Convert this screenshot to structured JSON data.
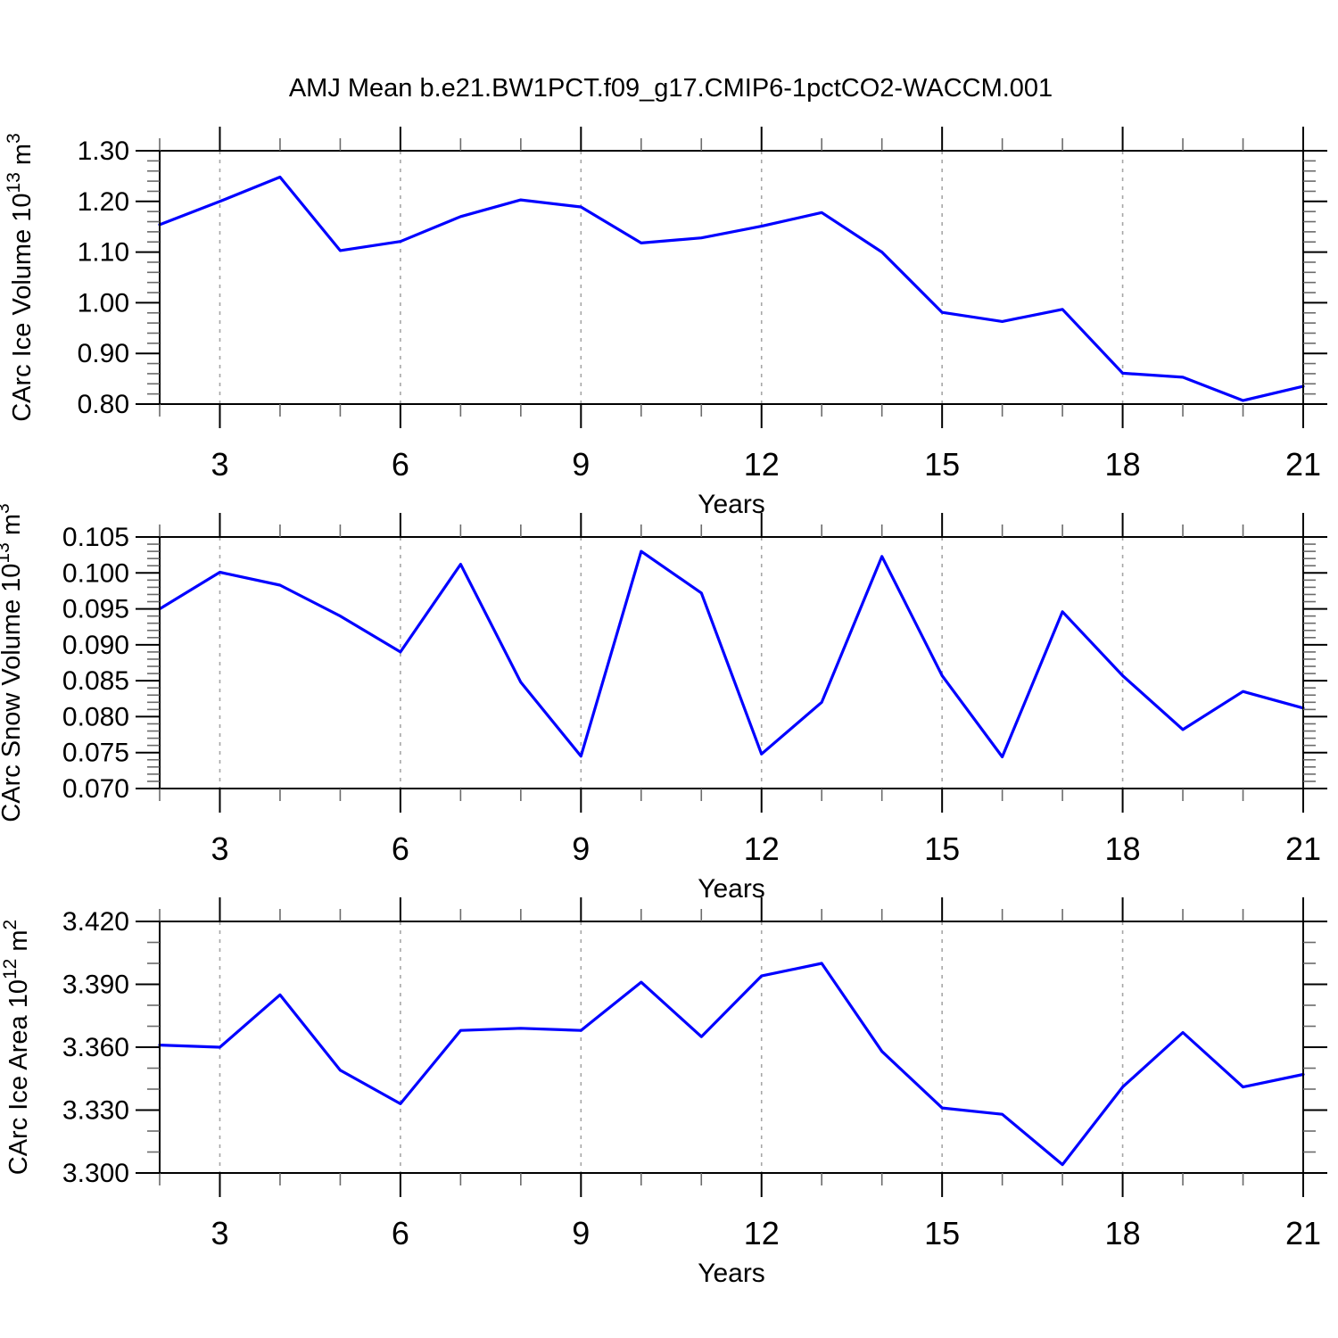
{
  "title": "AMJ Mean b.e21.BW1PCT.f09_g17.CMIP6-1pctCO2-WACCM.001",
  "xlabel": "Years",
  "colors": {
    "line": "#0000ff",
    "axis": "#000000",
    "minor_tick": "#6b6b6b",
    "grid": "#a6a6a6",
    "background": "#ffffff"
  },
  "x_axis": {
    "range": [
      2,
      21
    ],
    "major_ticks": [
      3,
      6,
      9,
      12,
      15,
      18,
      21
    ],
    "major_tick_labels": [
      "3",
      "6",
      "9",
      "12",
      "15",
      "18",
      "21"
    ],
    "minor_step": 1,
    "gridline_ticks": [
      3,
      6,
      9,
      12,
      15,
      18
    ]
  },
  "chart_data": [
    {
      "type": "line",
      "id": "ice-volume",
      "ylabel": "CArc Ice Volume 10^13 m^3",
      "ylabel_parts": [
        {
          "text": "CArc Ice Volume 10"
        },
        {
          "text": "13",
          "sup": true
        },
        {
          "text": " m"
        },
        {
          "text": "3",
          "sup": true
        }
      ],
      "ylim": [
        0.8,
        1.3
      ],
      "y_major_values": [
        1.3,
        1.2,
        1.1,
        1.0,
        0.9,
        0.8
      ],
      "y_major_labels": [
        "1.30",
        "1.20",
        "1.10",
        "1.00",
        "0.90",
        "0.80"
      ],
      "y_minor_step": 0.02,
      "x": [
        2,
        3,
        4,
        5,
        6,
        7,
        8,
        9,
        10,
        11,
        12,
        13,
        14,
        15,
        16,
        17,
        18,
        19,
        20,
        21
      ],
      "values": [
        1.154,
        1.2,
        1.248,
        1.103,
        1.121,
        1.17,
        1.203,
        1.189,
        1.118,
        1.128,
        1.151,
        1.178,
        1.1,
        0.981,
        0.963,
        0.987,
        0.861,
        0.853,
        0.807,
        0.835
      ]
    },
    {
      "type": "line",
      "id": "snow-volume",
      "ylabel": "CArc Snow Volume 10^13 m^3",
      "ylabel_parts": [
        {
          "text": "CArc Snow Volume 10"
        },
        {
          "text": "13",
          "sup": true
        },
        {
          "text": " m"
        },
        {
          "text": "3",
          "sup": true
        }
      ],
      "ylim": [
        0.07,
        0.105
      ],
      "y_major_values": [
        0.105,
        0.1,
        0.095,
        0.09,
        0.085,
        0.08,
        0.075,
        0.07
      ],
      "y_major_labels": [
        "0.105",
        "0.100",
        "0.095",
        "0.090",
        "0.085",
        "0.080",
        "0.075",
        "0.070"
      ],
      "y_minor_step": 0.001,
      "x": [
        2,
        3,
        4,
        5,
        6,
        7,
        8,
        9,
        10,
        11,
        12,
        13,
        14,
        15,
        16,
        17,
        18,
        19,
        20,
        21
      ],
      "values": [
        0.095,
        0.1001,
        0.0983,
        0.094,
        0.089,
        0.1012,
        0.0848,
        0.0745,
        0.103,
        0.0972,
        0.0748,
        0.082,
        0.1023,
        0.0857,
        0.0744,
        0.0946,
        0.0857,
        0.0782,
        0.0835,
        0.0812
      ]
    },
    {
      "type": "line",
      "id": "ice-area",
      "ylabel": "CArc Ice Area 10^12 m^2",
      "ylabel_parts": [
        {
          "text": "CArc Ice Area 10"
        },
        {
          "text": "12",
          "sup": true
        },
        {
          "text": " m"
        },
        {
          "text": "2",
          "sup": true
        }
      ],
      "ylim": [
        3.3,
        3.42
      ],
      "y_major_values": [
        3.42,
        3.39,
        3.36,
        3.33,
        3.3
      ],
      "y_major_labels": [
        "3.420",
        "3.390",
        "3.360",
        "3.330",
        "3.300"
      ],
      "y_minor_step": 0.01,
      "x": [
        2,
        3,
        4,
        5,
        6,
        7,
        8,
        9,
        10,
        11,
        12,
        13,
        14,
        15,
        16,
        17,
        18,
        19,
        20,
        21
      ],
      "values": [
        3.361,
        3.36,
        3.385,
        3.349,
        3.333,
        3.368,
        3.369,
        3.368,
        3.391,
        3.365,
        3.394,
        3.4,
        3.358,
        3.331,
        3.328,
        3.304,
        3.341,
        3.367,
        3.341,
        3.347
      ]
    }
  ]
}
